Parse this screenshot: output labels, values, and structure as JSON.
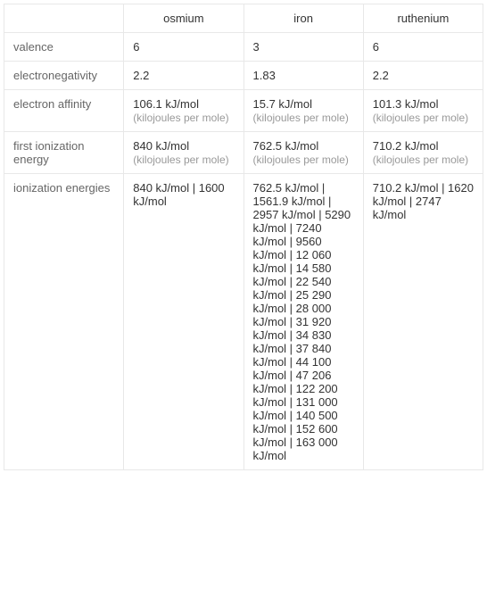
{
  "columns": {
    "empty": "",
    "osmium": "osmium",
    "iron": "iron",
    "ruthenium": "ruthenium"
  },
  "rows": {
    "valence": {
      "label": "valence",
      "osmium": "6",
      "iron": "3",
      "ruthenium": "6"
    },
    "electronegativity": {
      "label": "electronegativity",
      "osmium": "2.2",
      "iron": "1.83",
      "ruthenium": "2.2"
    },
    "electron_affinity": {
      "label": "electron affinity",
      "osmium_main": "106.1 kJ/mol",
      "osmium_unit": "(kilojoules per mole)",
      "iron_main": "15.7 kJ/mol",
      "iron_unit": "(kilojoules per mole)",
      "ruthenium_main": "101.3 kJ/mol",
      "ruthenium_unit": "(kilojoules per mole)"
    },
    "first_ionization": {
      "label": "first ionization energy",
      "osmium_main": "840 kJ/mol",
      "osmium_unit": "(kilojoules per mole)",
      "iron_main": "762.5 kJ/mol",
      "iron_unit": "(kilojoules per mole)",
      "ruthenium_main": "710.2 kJ/mol",
      "ruthenium_unit": "(kilojoules per mole)"
    },
    "ionization_energies": {
      "label": "ionization energies",
      "osmium": "840 kJ/mol   |   1600 kJ/mol",
      "iron": "762.5 kJ/mol   |   1561.9 kJ/mol   |   2957 kJ/mol   |   5290 kJ/mol   |   7240 kJ/mol   |   9560 kJ/mol   |   12 060 kJ/mol   |   14 580 kJ/mol   |   22 540 kJ/mol   |   25 290 kJ/mol   |   28 000 kJ/mol   |   31 920 kJ/mol   |   34 830 kJ/mol   |   37 840 kJ/mol   |   44 100 kJ/mol   |   47 206 kJ/mol   |   122 200 kJ/mol   |   131 000 kJ/mol   |   140 500 kJ/mol   |   152 600 kJ/mol   |   163 000 kJ/mol",
      "ruthenium": "710.2 kJ/mol   |   1620 kJ/mol   |   2747 kJ/mol"
    }
  }
}
